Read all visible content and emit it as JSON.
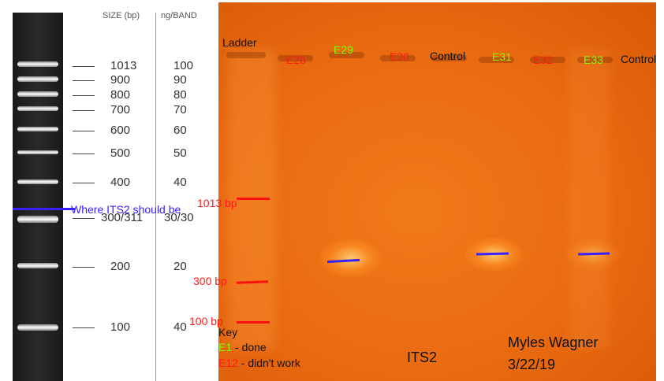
{
  "ladder": {
    "header_size": "SIZE (bp)",
    "header_ng": "ng/BAND",
    "bands": [
      {
        "size": "1013",
        "ng": "100"
      },
      {
        "size": "900",
        "ng": "90"
      },
      {
        "size": "800",
        "ng": "80"
      },
      {
        "size": "700",
        "ng": "70"
      },
      {
        "size": "600",
        "ng": "60"
      },
      {
        "size": "500",
        "ng": "50"
      },
      {
        "size": "400",
        "ng": "40"
      },
      {
        "size": "300/311",
        "ng": "30/30"
      },
      {
        "size": "200",
        "ng": "20"
      },
      {
        "size": "100",
        "ng": "40"
      }
    ],
    "annotation": "Where ITS2 should be"
  },
  "gel": {
    "lanes": {
      "ladder": "Ladder",
      "e28": "E28",
      "e29": "E29",
      "e30": "E30",
      "control1": "Control",
      "e31": "E31",
      "e32": "E32",
      "e33": "E33",
      "control2": "Control"
    },
    "markers": {
      "m1013": "1013 bp",
      "m300": "300 bp",
      "m100": "100 bp"
    },
    "key": {
      "title": "Key",
      "done_code": "E1",
      "done_text": " - done",
      "fail_code": "E12",
      "fail_text": " - didn't work"
    },
    "gene": "ITS2",
    "author": "Myles Wagner",
    "date": "3/22/19"
  },
  "colors": {
    "done": "#7fff00",
    "failed": "#ff1a1a",
    "gel_orange": "#ea6a10",
    "marker_line": "#ff1010",
    "target_line": "#3a20ff"
  }
}
